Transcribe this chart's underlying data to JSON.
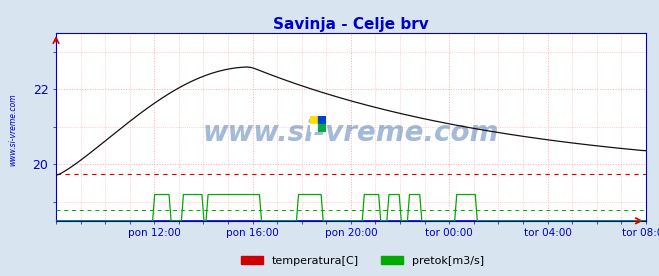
{
  "title": "Savinja - Celje brv",
  "title_color": "#0000cc",
  "title_fontsize": 11,
  "bg_color": "#d8e4f0",
  "plot_bg_color": "#ffffff",
  "border_color": "#0000bb",
  "grid_color": "#ffaaaa",
  "watermark_text": "www.si-vreme.com",
  "watermark_color": "#3366aa",
  "side_label": "www.si-vreme.com",
  "side_label_color": "#0000cc",
  "x_tick_labels": [
    "pon 12:00",
    "pon 16:00",
    "pon 20:00",
    "tor 00:00",
    "tor 04:00",
    "tor 08:00"
  ],
  "x_tick_color": "#0000cc",
  "y_tick_color": "#0000cc",
  "y_ticks": [
    20,
    22
  ],
  "ylim_temp": [
    18.5,
    23.5
  ],
  "ylim_flow": [
    0,
    25
  ],
  "xlim": [
    0,
    287
  ],
  "n_points": 288,
  "temp_line_color": "#111111",
  "temp_avg_color": "#dd0000",
  "flow_line_color": "#00aa00",
  "flow_avg_color": "#00aa00",
  "blue_bottom_color": "#0000cc",
  "red_arrow_color": "#cc0000",
  "legend_labels": [
    "temperatura[C]",
    "pretok[m3/s]"
  ],
  "legend_colors": [
    "#cc0000",
    "#00aa00"
  ],
  "temp_avg_value": 19.75,
  "flow_avg_value": 1.5
}
